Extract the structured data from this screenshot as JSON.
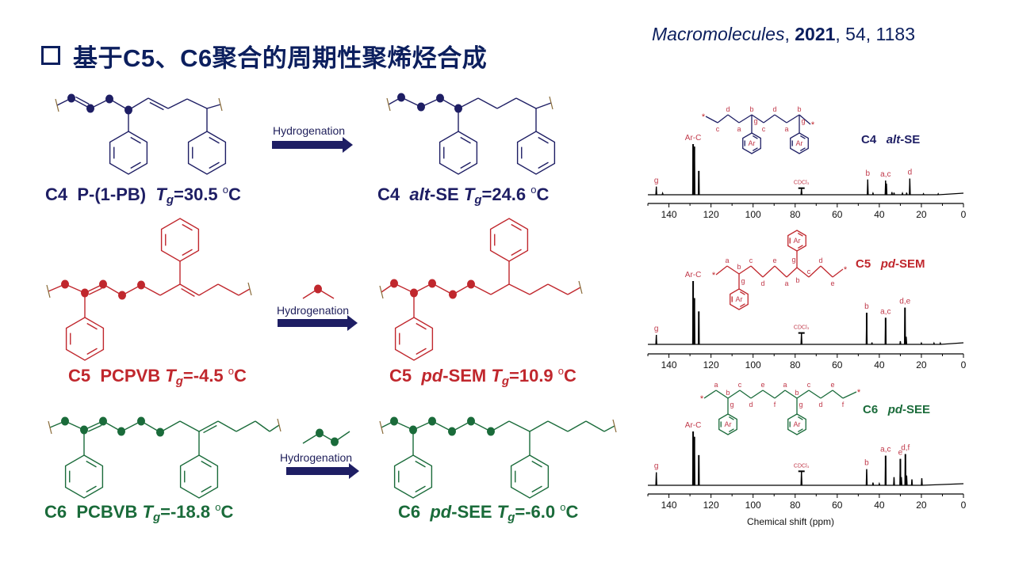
{
  "title": {
    "text": "基于C5、C6聚合的周期性聚烯烃合成"
  },
  "citation": {
    "journal": "Macromolecules",
    "sep1": ", ",
    "year": "2021",
    "rest": ", 54, 1183"
  },
  "colors": {
    "c4": "#1e1e64",
    "c5": "#c0272d",
    "c6": "#1a6b3a",
    "title": "#0c1f5e",
    "peak_label": "#c0394a"
  },
  "reactions": [
    {
      "arrow_label": "Hydrogenation",
      "reactant": {
        "code": "C4",
        "name_italic": "",
        "name": "P-(1-PB)",
        "tg_symbol": "T",
        "tg_sub": "g",
        "tg_value": "=30.5 ",
        "unit_sup": "o",
        "unit": "C"
      },
      "product": {
        "code": "C4",
        "name_italic": "alt",
        "name": "-SE",
        "tg_symbol": "T",
        "tg_sub": "g",
        "tg_value": "=24.6 ",
        "unit_sup": "o",
        "unit": "C"
      }
    },
    {
      "arrow_label": "Hydrogenation",
      "reactant": {
        "code": "C5",
        "name_italic": "",
        "name": "PCPVB",
        "tg_symbol": "T",
        "tg_sub": "g",
        "tg_value": "=-4.5 ",
        "unit_sup": "o",
        "unit": "C"
      },
      "product": {
        "code": "C5",
        "name_italic": "pd",
        "name": "-SEM",
        "tg_symbol": "T",
        "tg_sub": "g",
        "tg_value": "=10.9 ",
        "unit_sup": "o",
        "unit": "C"
      }
    },
    {
      "arrow_label": "Hydrogenation",
      "reactant": {
        "code": "C6",
        "name_italic": "",
        "name": "PCBVB",
        "tg_symbol": "T",
        "tg_sub": "g",
        "tg_value": "=-18.8 ",
        "unit_sup": "o",
        "unit": "C"
      },
      "product": {
        "code": "C6",
        "name_italic": "pd",
        "name": "-SEE",
        "tg_symbol": "T",
        "tg_sub": "g",
        "tg_value": "=-6.0 ",
        "unit_sup": "o",
        "unit": "C"
      }
    }
  ],
  "chart_data": [
    {
      "type": "line",
      "title": {
        "code": "C4",
        "name_italic": "alt",
        "name": "-SE"
      },
      "xlim": [
        150,
        0
      ],
      "x_reversed": true,
      "xticks": [
        140,
        120,
        100,
        80,
        60,
        40,
        20,
        0
      ],
      "xlabel": "",
      "structure": {
        "chain_labels": [
          "c",
          "d",
          "a",
          "b",
          "c",
          "d",
          "a",
          "b"
        ],
        "branch_label": "g",
        "ring_label": "Ar"
      },
      "peaks": [
        {
          "ppm": 146,
          "intensity": 16,
          "label": "g"
        },
        {
          "ppm": 143,
          "intensity": 3
        },
        {
          "ppm": 128.5,
          "intensity": 100,
          "label": "Ar-C"
        },
        {
          "ppm": 127.9,
          "intensity": 95
        },
        {
          "ppm": 125.8,
          "intensity": 47
        },
        {
          "ppm": 77,
          "intensity": 13,
          "label": "CDCl₃"
        },
        {
          "ppm": 45.5,
          "intensity": 30,
          "label": "b"
        },
        {
          "ppm": 43,
          "intensity": 3
        },
        {
          "ppm": 37,
          "intensity": 28,
          "label": "a,c"
        },
        {
          "ppm": 36.6,
          "intensity": 22
        },
        {
          "ppm": 34,
          "intensity": 5
        },
        {
          "ppm": 33,
          "intensity": 4
        },
        {
          "ppm": 29,
          "intensity": 3
        },
        {
          "ppm": 27,
          "intensity": 4
        },
        {
          "ppm": 25.5,
          "intensity": 32,
          "label": "d"
        },
        {
          "ppm": 19,
          "intensity": 2
        },
        {
          "ppm": 12,
          "intensity": 2
        }
      ]
    },
    {
      "type": "line",
      "title": {
        "code": "C5",
        "name_italic": "pd",
        "name": "-SEM"
      },
      "xlim": [
        150,
        0
      ],
      "x_reversed": true,
      "xticks": [
        140,
        120,
        100,
        80,
        60,
        40,
        20,
        0
      ],
      "xlabel": "",
      "structure": {
        "chain_labels": [
          "a",
          "b",
          "c",
          "d",
          "e",
          "a",
          "g",
          "c",
          "d",
          "e"
        ],
        "extra_labels": [
          "g",
          "b"
        ],
        "ring_label": "Ar"
      },
      "peaks": [
        {
          "ppm": 146,
          "intensity": 15,
          "label": "g"
        },
        {
          "ppm": 128.5,
          "intensity": 100,
          "label": "Ar-C"
        },
        {
          "ppm": 127.9,
          "intensity": 73
        },
        {
          "ppm": 125.8,
          "intensity": 52
        },
        {
          "ppm": 77,
          "intensity": 18,
          "label": "CDCl₃"
        },
        {
          "ppm": 46,
          "intensity": 50,
          "label": "b"
        },
        {
          "ppm": 43.5,
          "intensity": 3
        },
        {
          "ppm": 37,
          "intensity": 42,
          "label": "a,c"
        },
        {
          "ppm": 30,
          "intensity": 5
        },
        {
          "ppm": 27.8,
          "intensity": 58,
          "label": "d,e"
        },
        {
          "ppm": 27.2,
          "intensity": 12
        },
        {
          "ppm": 20,
          "intensity": 2
        },
        {
          "ppm": 14,
          "intensity": 2
        },
        {
          "ppm": 11,
          "intensity": 2
        }
      ]
    },
    {
      "type": "line",
      "title": {
        "code": "C6",
        "name_italic": "pd",
        "name": "-SEE"
      },
      "xlim": [
        150,
        0
      ],
      "x_reversed": true,
      "xticks": [
        140,
        120,
        100,
        80,
        60,
        40,
        20,
        0
      ],
      "xlabel": "Chemical shift (ppm)",
      "structure": {
        "chain_labels": [
          "a",
          "b",
          "c",
          "d",
          "e",
          "f",
          "a",
          "b",
          "c",
          "d",
          "e",
          "f"
        ],
        "branch_label": "g",
        "ring_label": "Ar"
      },
      "peaks": [
        {
          "ppm": 146,
          "intensity": 24,
          "label": "g"
        },
        {
          "ppm": 128.5,
          "intensity": 100,
          "label": "Ar-C"
        },
        {
          "ppm": 127.9,
          "intensity": 90
        },
        {
          "ppm": 125.8,
          "intensity": 56
        },
        {
          "ppm": 77,
          "intensity": 26,
          "label": "CDCl₃"
        },
        {
          "ppm": 46,
          "intensity": 30,
          "label": "b"
        },
        {
          "ppm": 43,
          "intensity": 5
        },
        {
          "ppm": 40,
          "intensity": 3
        },
        {
          "ppm": 37,
          "intensity": 55,
          "label": "a,c"
        },
        {
          "ppm": 33,
          "intensity": 15
        },
        {
          "ppm": 30,
          "intensity": 49,
          "label": "e"
        },
        {
          "ppm": 29.5,
          "intensity": 15
        },
        {
          "ppm": 27.6,
          "intensity": 58,
          "label": "d,f"
        },
        {
          "ppm": 27,
          "intensity": 18
        },
        {
          "ppm": 24.5,
          "intensity": 11
        },
        {
          "ppm": 19.8,
          "intensity": 13
        }
      ]
    }
  ]
}
